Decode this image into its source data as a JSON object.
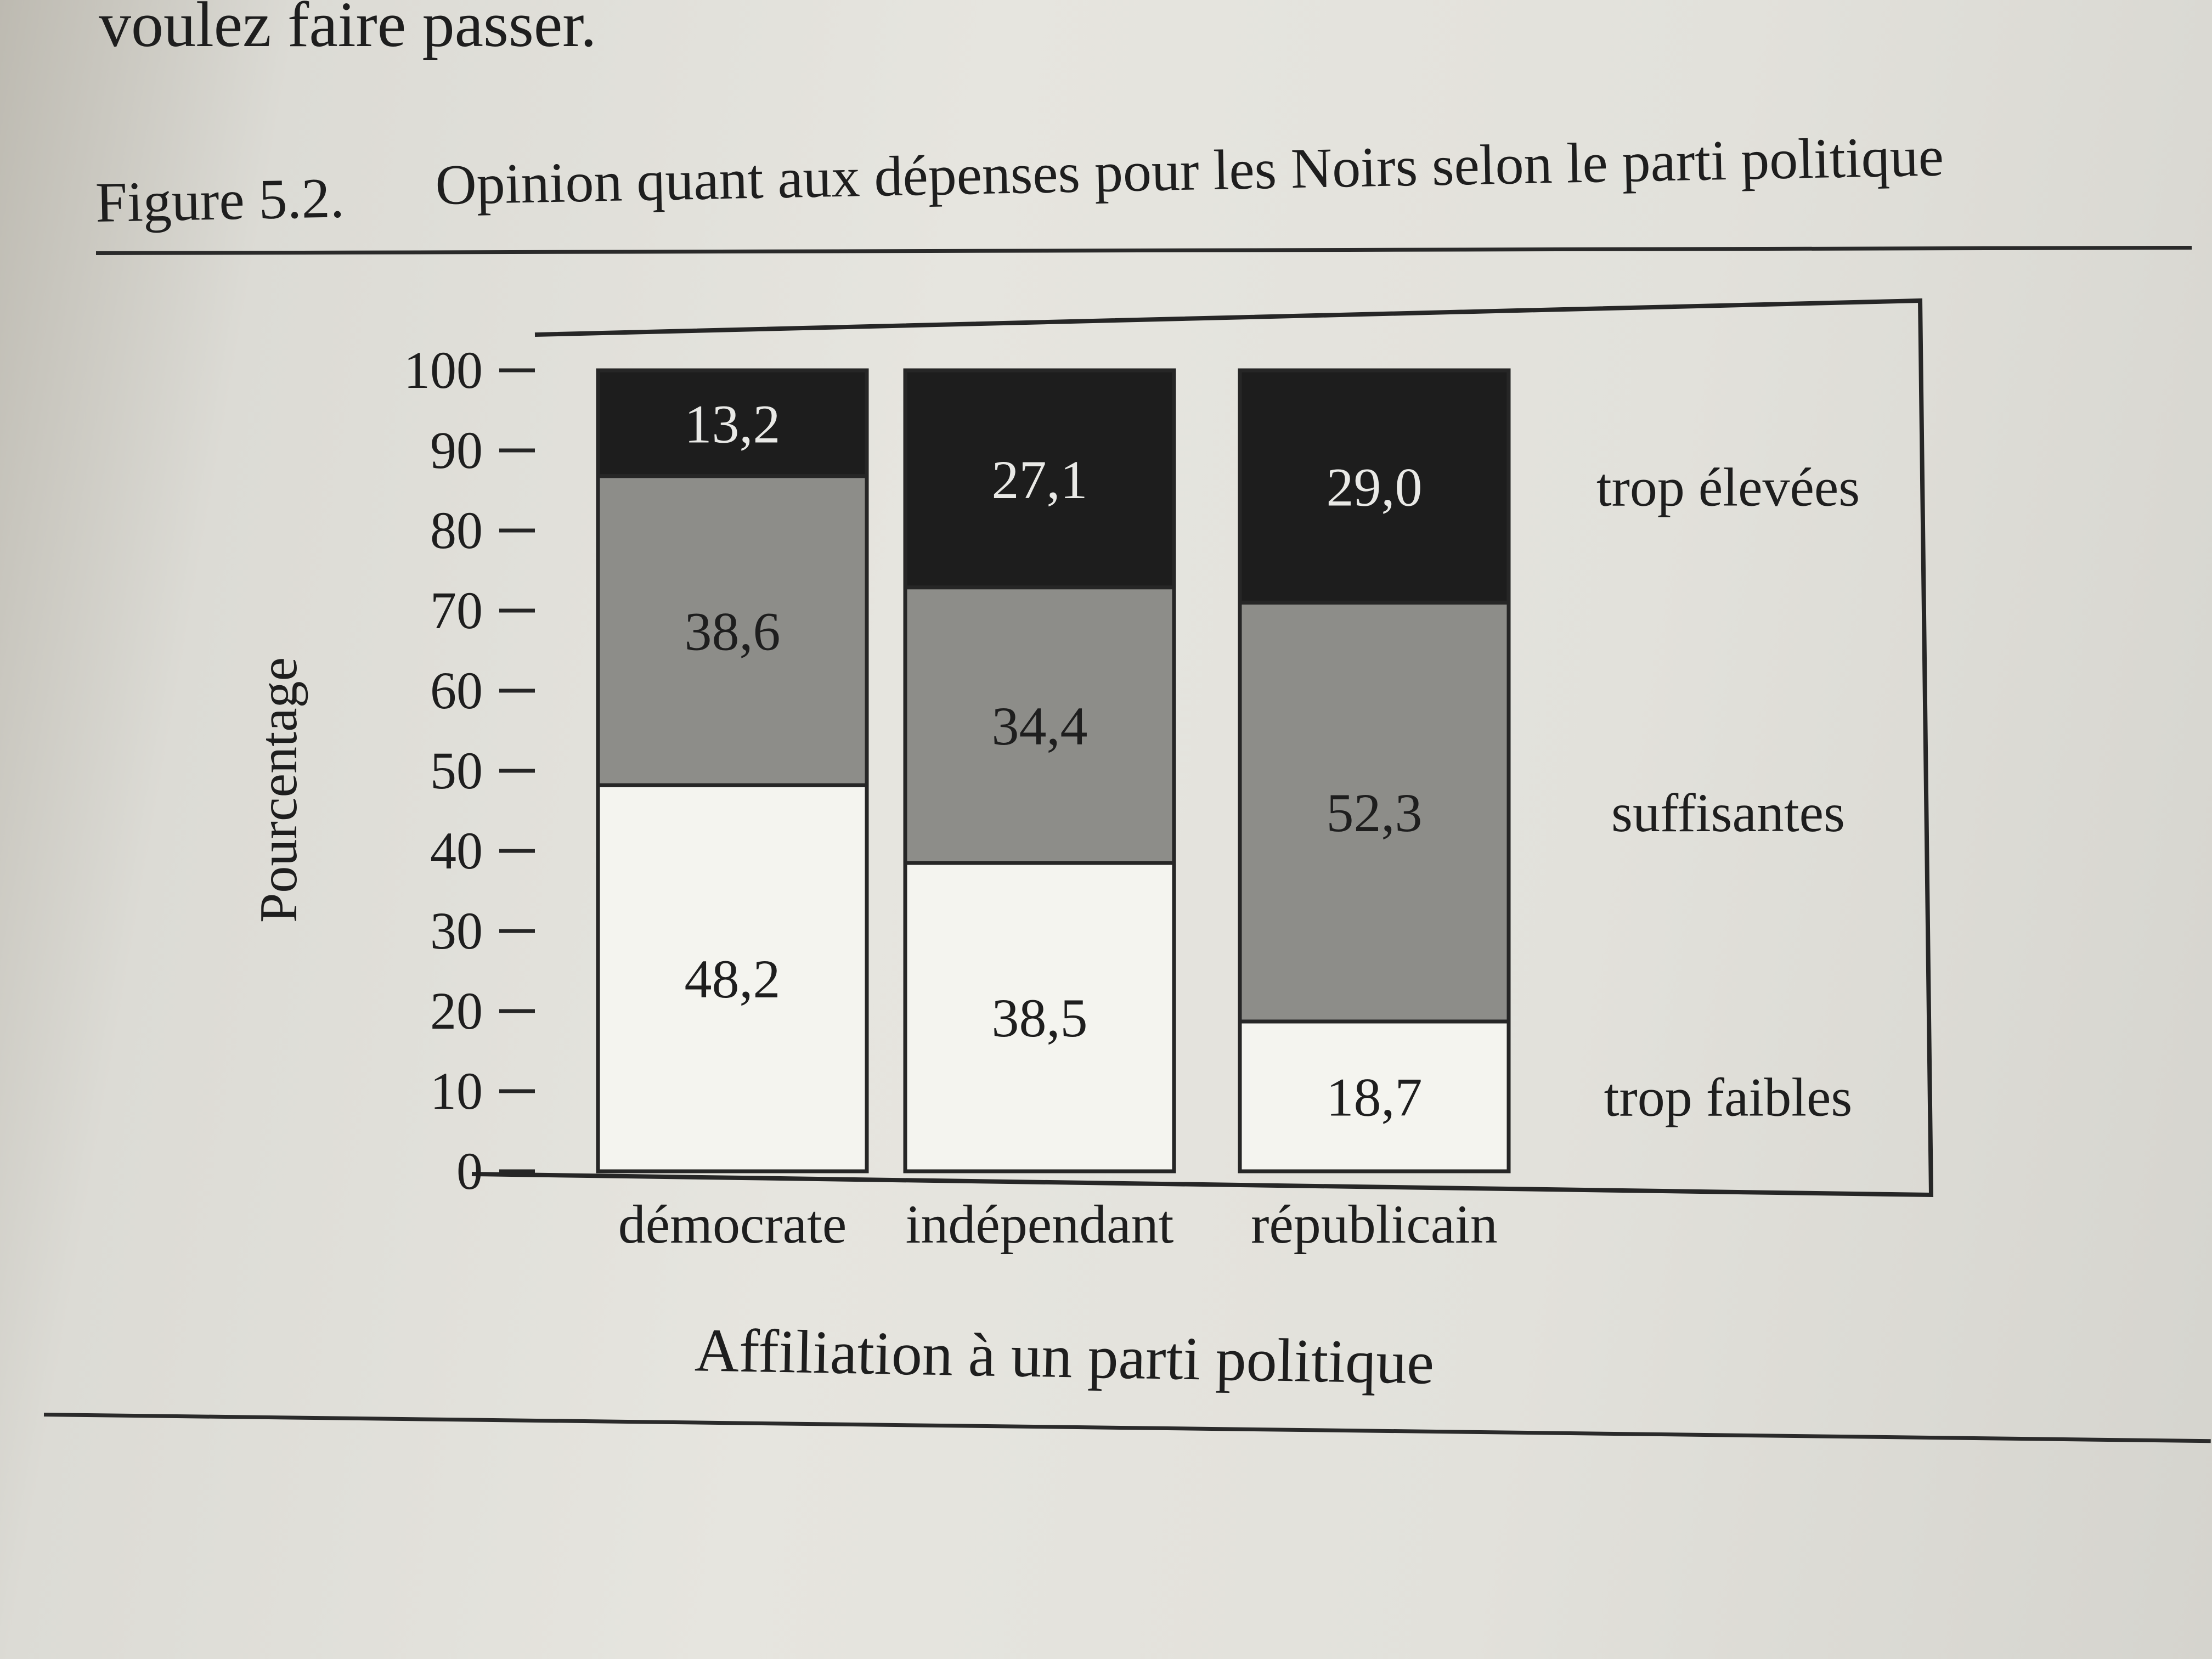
{
  "page": {
    "top_text": "voulez faire passer.",
    "figure_number": "Figure 5.2.",
    "figure_title": "Opinion quant aux dépenses pour les Noirs selon le parti politique"
  },
  "chart_data": {
    "type": "bar",
    "stacked": true,
    "title": "Opinion quant aux dépenses pour les Noirs selon le parti politique",
    "xlabel": "Affiliation à un parti politique",
    "ylabel": "Pourcentage",
    "ylim": [
      0,
      100
    ],
    "yticks": [
      "0",
      "10",
      "20",
      "30",
      "40",
      "50",
      "60",
      "70",
      "80",
      "90",
      "100"
    ],
    "categories": [
      "démocrate",
      "indépendant",
      "républicain"
    ],
    "series": [
      {
        "name": "trop faibles",
        "values": [
          48.2,
          38.5,
          18.7
        ],
        "labels": [
          "48,2",
          "38,5",
          "18,7"
        ],
        "color": "#f4f4ef",
        "text_color": "#1e1e1e"
      },
      {
        "name": "suffisantes",
        "values": [
          38.6,
          34.4,
          52.3
        ],
        "labels": [
          "38,6",
          "34,4",
          "52,3"
        ],
        "color": "#8d8d89",
        "text_color": "#1e1e1e"
      },
      {
        "name": "trop élevées",
        "values": [
          13.2,
          27.1,
          29.0
        ],
        "labels": [
          "13,2",
          "27,1",
          "29,0"
        ],
        "color": "#1d1d1d",
        "text_color": "#e9e9e6"
      }
    ],
    "legend_placement": "right, beside each segment",
    "grid": false
  }
}
